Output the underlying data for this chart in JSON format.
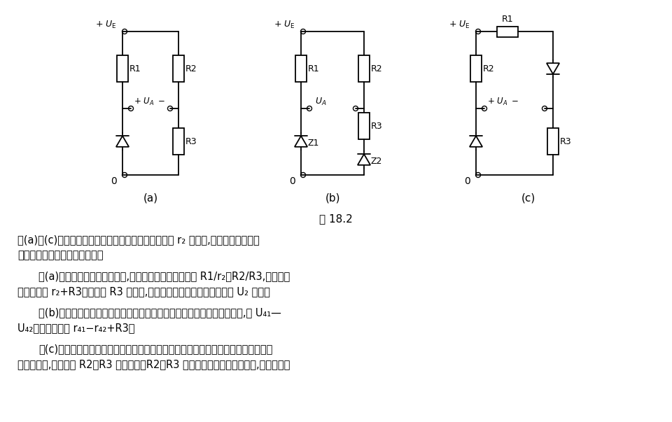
{
  "bg_color": "#ffffff",
  "fig_width": 9.6,
  "fig_height": 6.03,
  "title_text": "图 18.2",
  "paragraphs": [
    "图(a)～(c)电路可有很高的稳压系数。如果稳压管内阻 r₂ 是常数,则在保持桥精确平",
    "衡情况下有无限大的稳压系数。",
    "图(a)电路负载接在桥对角线上,在稳压范围中点满足条件 R1/r₂＝R2/R3,电路的输",
    "出电阻约为 r₂+R3。为降低 R3 上压降,输出电压应同稳压管的工作电压 U₂ 相等。",
    "图(b)电路特别适于稳定低电压。输出电压约等于两个稳压管工作电压之差,即 U₄₁—",
    "U₄₂。输出电阻为 r₄₁−r₄₂+R3。",
    "图(c)电路只适于输入电压和输出电压之间差値很小的情况。两个稳压管的工作电压应",
    "尽可能相等,两个电阻 R2、R3 也应相等。R2、R3 电阻的选择在工作区域中点,稳压管内阻"
  ]
}
